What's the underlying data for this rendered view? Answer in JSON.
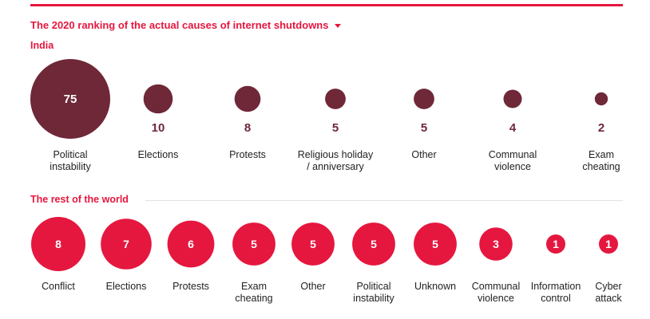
{
  "title": "The 2020 ranking of the actual causes of internet shutdowns",
  "colors": {
    "india": "#6f2838",
    "world": "#e5173f",
    "accent": "#e5173f",
    "text": "#222222"
  },
  "chart_data": [
    {
      "type": "bubble",
      "title": "India",
      "color": "#6f2838",
      "categories": [
        "Political instability",
        "Elections",
        "Protests",
        "Religious holiday / anniversary",
        "Other",
        "Communal violence",
        "Exam cheating"
      ],
      "label_lines": [
        [
          "Political",
          "instability"
        ],
        [
          "Elections"
        ],
        [
          "Protests"
        ],
        [
          "Religious holiday",
          "/ anniversary"
        ],
        [
          "Other"
        ],
        [
          "Communal",
          "violence"
        ],
        [
          "Exam",
          "cheating"
        ]
      ],
      "values": [
        75,
        10,
        8,
        5,
        5,
        4,
        2
      ],
      "value_label_inside": [
        true,
        false,
        false,
        false,
        false,
        false,
        false
      ]
    },
    {
      "type": "bubble",
      "title": "The rest of the world",
      "color": "#e5173f",
      "categories": [
        "Conflict",
        "Elections",
        "Protests",
        "Exam cheating",
        "Other",
        "Political instability",
        "Unknown",
        "Communal violence",
        "Information control",
        "Cyber attack"
      ],
      "label_lines": [
        [
          "Conflict"
        ],
        [
          "Elections"
        ],
        [
          "Protests"
        ],
        [
          "Exam",
          "cheating"
        ],
        [
          "Other"
        ],
        [
          "Political",
          "instability"
        ],
        [
          "Unknown"
        ],
        [
          "Communal",
          "violence"
        ],
        [
          "Information",
          "control"
        ],
        [
          "Cyber",
          "attack"
        ]
      ],
      "values": [
        8,
        7,
        6,
        5,
        5,
        5,
        5,
        3,
        1,
        1
      ],
      "value_label_inside": [
        true,
        true,
        true,
        true,
        true,
        true,
        true,
        true,
        true,
        true
      ]
    }
  ]
}
